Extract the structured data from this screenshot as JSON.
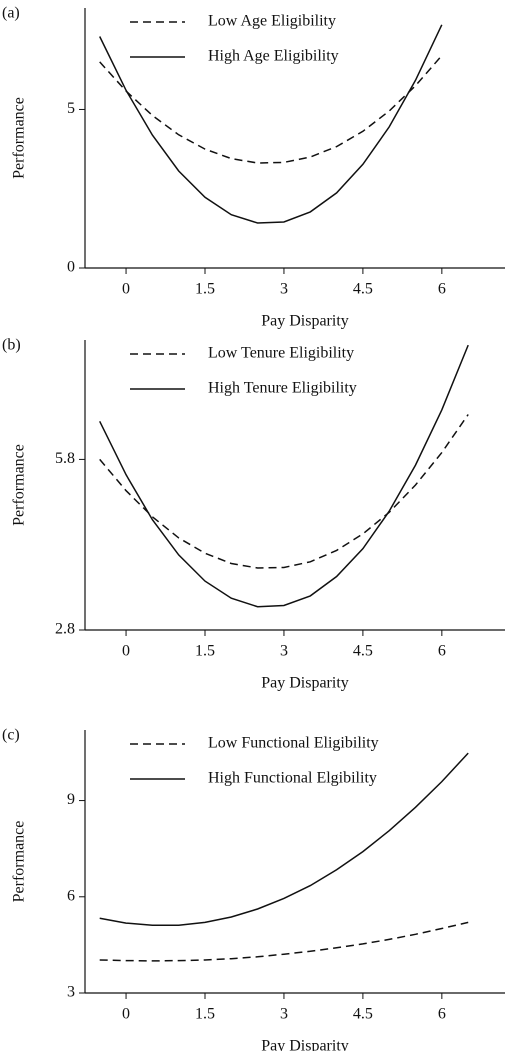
{
  "chart_data": [
    {
      "type": "line",
      "panel_label": "(a)",
      "xlabel": "Pay Disparity",
      "ylabel": "Performance",
      "x": [
        -0.5,
        0,
        0.5,
        1,
        1.5,
        2,
        2.5,
        3,
        3.5,
        4,
        4.5,
        5,
        5.5,
        6
      ],
      "series": [
        {
          "name": "Low Age Eligibility",
          "color": "#111111",
          "dash": true,
          "values": [
            6.5,
            5.58,
            4.81,
            4.2,
            3.75,
            3.45,
            3.31,
            3.33,
            3.5,
            3.83,
            4.31,
            4.95,
            5.75,
            6.7
          ]
        },
        {
          "name": "High Age Eligibility",
          "color": "#111111",
          "dash": false,
          "values": [
            7.3,
            5.6,
            4.19,
            3.06,
            2.23,
            1.68,
            1.42,
            1.45,
            1.77,
            2.37,
            3.27,
            4.45,
            5.92,
            7.67
          ]
        }
      ],
      "xlim": [
        -0.78,
        7.2
      ],
      "xticks": [
        0,
        1.5,
        3,
        4.5,
        6
      ],
      "ylim": [
        0,
        8.2
      ],
      "yticks": [
        0,
        5
      ]
    },
    {
      "type": "line",
      "panel_label": "(b)",
      "xlabel": "Pay Disparity",
      "ylabel": "Performance",
      "x": [
        -0.5,
        0,
        0.5,
        1,
        1.5,
        2,
        2.5,
        3,
        3.5,
        4,
        4.5,
        5,
        5.5,
        6,
        6.5
      ],
      "series": [
        {
          "name": "Low Tenure Eligibility",
          "color": "#111111",
          "dash": true,
          "values": [
            5.8,
            5.25,
            4.79,
            4.42,
            4.15,
            3.97,
            3.89,
            3.9,
            4.0,
            4.2,
            4.49,
            4.87,
            5.35,
            5.92,
            6.59
          ]
        },
        {
          "name": "High Tenure Eligibility",
          "color": "#111111",
          "dash": false,
          "values": [
            6.47,
            5.53,
            4.74,
            4.12,
            3.66,
            3.36,
            3.21,
            3.23,
            3.4,
            3.74,
            4.23,
            4.89,
            5.7,
            6.67,
            7.81
          ]
        }
      ],
      "xlim": [
        -0.78,
        7.2
      ],
      "xticks": [
        0,
        1.5,
        3,
        4.5,
        6
      ],
      "ylim": [
        2.8,
        7.9
      ],
      "yticks": [
        2.8,
        5.8
      ]
    },
    {
      "type": "line",
      "panel_label": "(c)",
      "xlabel": "Pay Disparity",
      "ylabel": "Performance",
      "x": [
        -0.5,
        0,
        0.5,
        1,
        1.5,
        2,
        2.5,
        3,
        3.5,
        4,
        4.5,
        5,
        5.5,
        6,
        6.5
      ],
      "series": [
        {
          "name": "Low Functional Eligibility",
          "color": "#111111",
          "dash": true,
          "values": [
            4.03,
            4.01,
            4.0,
            4.01,
            4.03,
            4.07,
            4.13,
            4.21,
            4.3,
            4.41,
            4.53,
            4.67,
            4.83,
            5.01,
            5.2
          ]
        },
        {
          "name": "High Functional Elgibility",
          "color": "#111111",
          "dash": false,
          "values": [
            5.33,
            5.18,
            5.11,
            5.11,
            5.2,
            5.37,
            5.62,
            5.95,
            6.35,
            6.84,
            7.41,
            8.06,
            8.79,
            9.59,
            10.48
          ]
        }
      ],
      "xlim": [
        -0.78,
        7.2
      ],
      "xticks": [
        0,
        1.5,
        3,
        4.5,
        6
      ],
      "ylim": [
        3,
        11.2
      ],
      "yticks": [
        3,
        6,
        9
      ]
    }
  ]
}
